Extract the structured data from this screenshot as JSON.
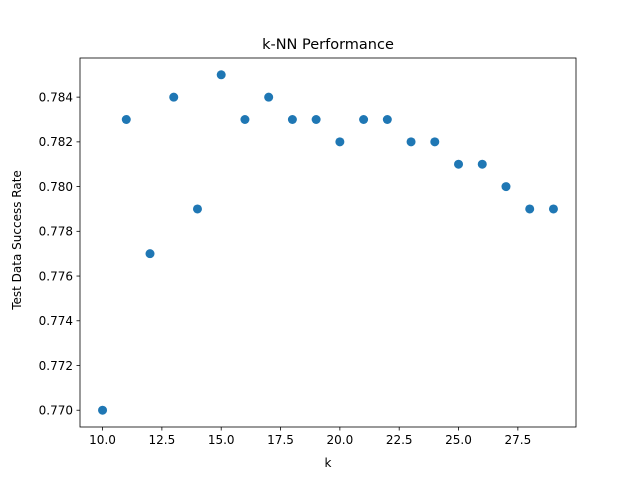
{
  "chart_data": {
    "type": "scatter",
    "title": "k-NN Performance",
    "xlabel": "k",
    "ylabel": "Test Data Success Rate",
    "xlim": [
      9.05,
      29.95
    ],
    "ylim": [
      0.76925,
      0.78575
    ],
    "x_ticks": [
      10.0,
      12.5,
      15.0,
      17.5,
      20.0,
      22.5,
      25.0,
      27.5
    ],
    "x_tick_labels": [
      "10.0",
      "12.5",
      "15.0",
      "17.5",
      "20.0",
      "22.5",
      "25.0",
      "27.5"
    ],
    "y_ticks": [
      0.77,
      0.772,
      0.774,
      0.776,
      0.778,
      0.78,
      0.782,
      0.784
    ],
    "y_tick_labels": [
      "0.770",
      "0.772",
      "0.774",
      "0.776",
      "0.778",
      "0.780",
      "0.782",
      "0.784"
    ],
    "grid": false,
    "legend": false,
    "marker_color": "#1f77b4",
    "series": [
      {
        "x": [
          10,
          11,
          12,
          13,
          14,
          15,
          16,
          17,
          18,
          19,
          20,
          21,
          22,
          23,
          24,
          25,
          26,
          27,
          28,
          29
        ],
        "y": [
          0.77,
          0.783,
          0.777,
          0.784,
          0.779,
          0.785,
          0.783,
          0.784,
          0.783,
          0.783,
          0.782,
          0.783,
          0.783,
          0.782,
          0.782,
          0.781,
          0.781,
          0.78,
          0.779,
          0.779
        ]
      }
    ]
  }
}
